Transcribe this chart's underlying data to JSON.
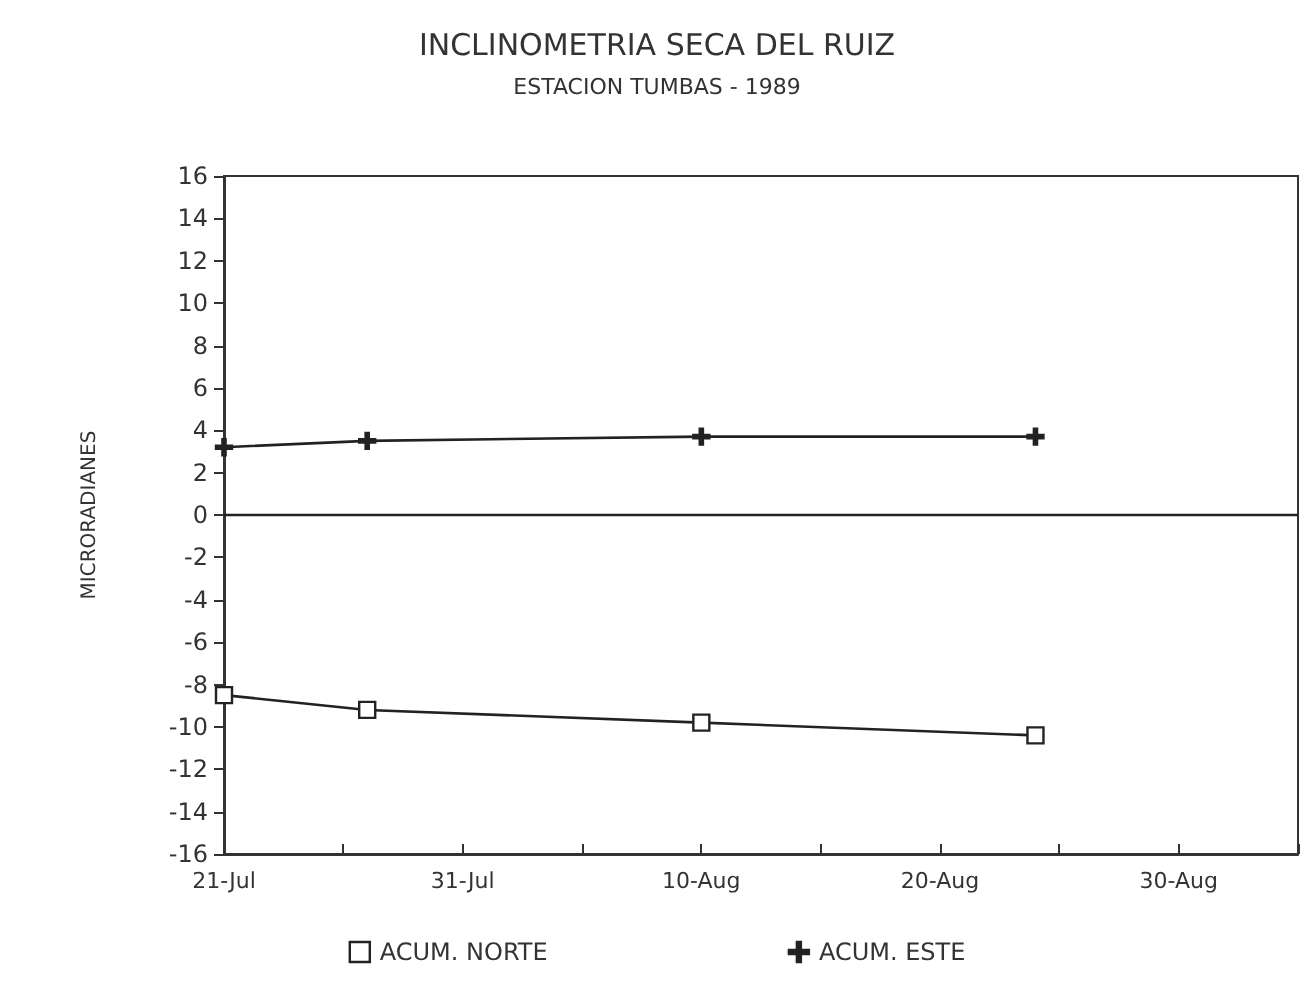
{
  "chart_data": {
    "type": "line",
    "title": "INCLINOMETRIA SECA DEL RUIZ",
    "subtitle": "ESTACION TUMBAS - 1989",
    "ylabel": "MICRORADIANES",
    "series": [
      {
        "name": "ACUM. NORTE",
        "color": "#222222",
        "marker": "square",
        "x": [
          "--07-21",
          "--07-27",
          "--08-10",
          "--08-24"
        ],
        "values": [
          -8.5,
          -9.2,
          -9.8,
          -10.4
        ]
      },
      {
        "name": "ACUM. ESTE",
        "color": "#222222",
        "marker": "cross",
        "x": [
          "--07-21",
          "--07-27",
          "--08-10",
          "--08-24"
        ],
        "values": [
          3.2,
          3.5,
          3.7,
          3.7
        ]
      }
    ],
    "xlim": [
      "--07-21",
      "--09-04"
    ],
    "xticks": [
      {
        "value": "--07-21",
        "label": "21-Jul"
      },
      {
        "value": "--07-26",
        "label": null
      },
      {
        "value": "--07-31",
        "label": "31-Jul"
      },
      {
        "value": "--08-05",
        "label": null
      },
      {
        "value": "--08-10",
        "label": "10-Aug"
      },
      {
        "value": "--08-15",
        "label": null
      },
      {
        "value": "--08-20",
        "label": "20-Aug"
      },
      {
        "value": "--08-25",
        "label": null
      },
      {
        "value": "--08-30",
        "label": "30-Aug"
      },
      {
        "value": "--09-04",
        "label": null
      }
    ],
    "ylim": [
      -16,
      16
    ],
    "yticks": [
      -16,
      -14,
      -12,
      -10,
      -8,
      -6,
      -4,
      -2,
      0,
      2,
      4,
      6,
      8,
      10,
      12,
      14,
      16
    ],
    "ref_lines": [
      {
        "axis": "y",
        "value": 0,
        "color": "#222222"
      }
    ],
    "grid": false,
    "legend": "bottom",
    "line_style": "solid"
  }
}
